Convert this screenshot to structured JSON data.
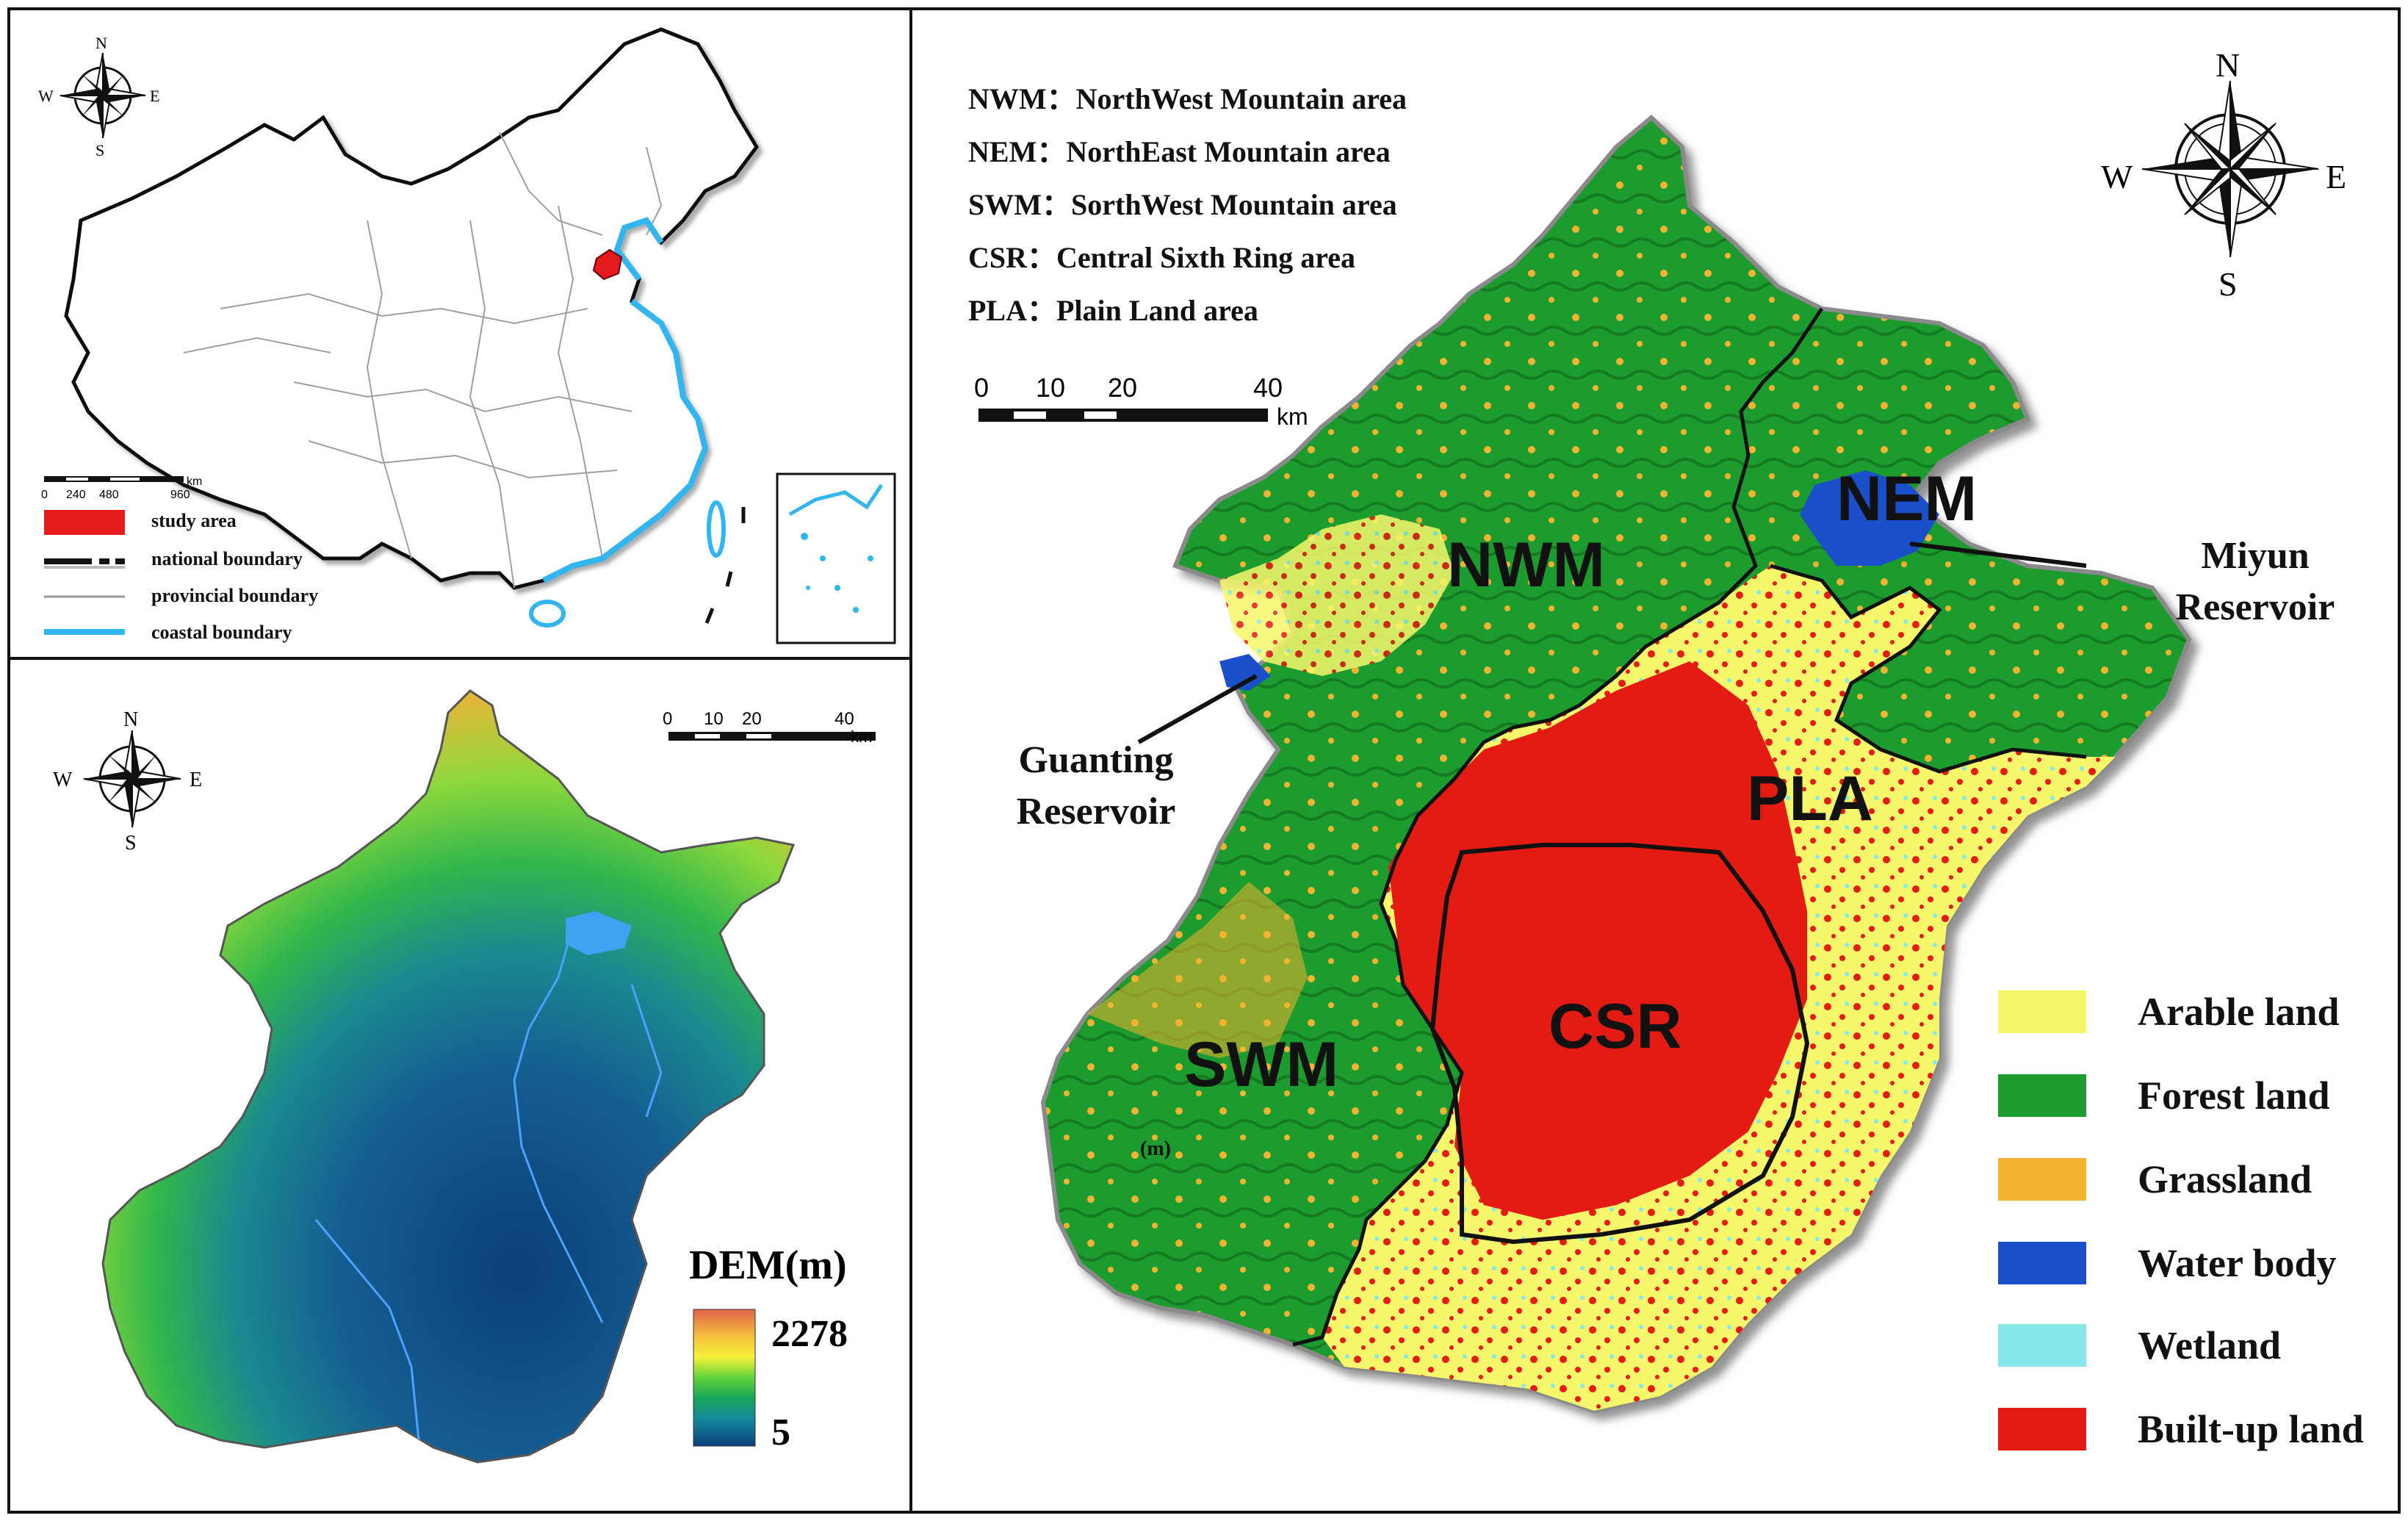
{
  "china_map": {
    "compass": {
      "n": "N",
      "s": "S",
      "e": "E",
      "w": "W"
    },
    "scale_ticks": [
      "0",
      "240",
      "480",
      "960"
    ],
    "scale_unit": "km",
    "legend": [
      {
        "label": "study area",
        "color": "#e41a1c"
      },
      {
        "label": "national boundary",
        "color": "#111111"
      },
      {
        "label": "provincial boundary",
        "color": "#9a9a9a"
      },
      {
        "label": "coastal boundary",
        "color": "#33b5f0"
      }
    ]
  },
  "dem_map": {
    "compass": {
      "n": "N",
      "s": "S",
      "e": "E",
      "w": "W"
    },
    "scale_ticks": [
      "0",
      "10",
      "20",
      "40"
    ],
    "scale_unit": "km",
    "legend_title": "DEM(m)",
    "max_value": "2278",
    "min_value": "5",
    "colors": [
      "#e0624a",
      "#f5c23b",
      "#f8f03a",
      "#5fd43c",
      "#1aa65a",
      "#138a9a",
      "#1a5d96",
      "#0b3f7a"
    ]
  },
  "landuse_map": {
    "abbreviations": [
      "NWM：NorthWest Mountain area",
      "NEM：NorthEast Mountain area",
      "SWM：SorthWest Mountain area",
      "CSR：Central Sixth Ring area",
      "PLA：Plain Land area"
    ],
    "compass": {
      "n": "N",
      "s": "S",
      "e": "E",
      "w": "W"
    },
    "scale_ticks": [
      "0",
      "10",
      "20",
      "40"
    ],
    "scale_unit": "km",
    "regions": [
      "NWM",
      "NEM",
      "SWM",
      "CSR",
      "PLA"
    ],
    "stray_label": "(m)",
    "callouts": {
      "miyun": [
        "Miyun",
        "Reservoir"
      ],
      "guanting": [
        "Guanting",
        "Reservoir"
      ]
    },
    "legend": [
      {
        "label": "Arable land",
        "color": "#f7f76b"
      },
      {
        "label": "Forest land",
        "color": "#1e9b2f"
      },
      {
        "label": "Grassland",
        "color": "#f3b331"
      },
      {
        "label": "Water body",
        "color": "#1a4fc9"
      },
      {
        "label": "Wetland",
        "color": "#86e8e8"
      },
      {
        "label": "Built-up land",
        "color": "#e31b12"
      }
    ]
  }
}
